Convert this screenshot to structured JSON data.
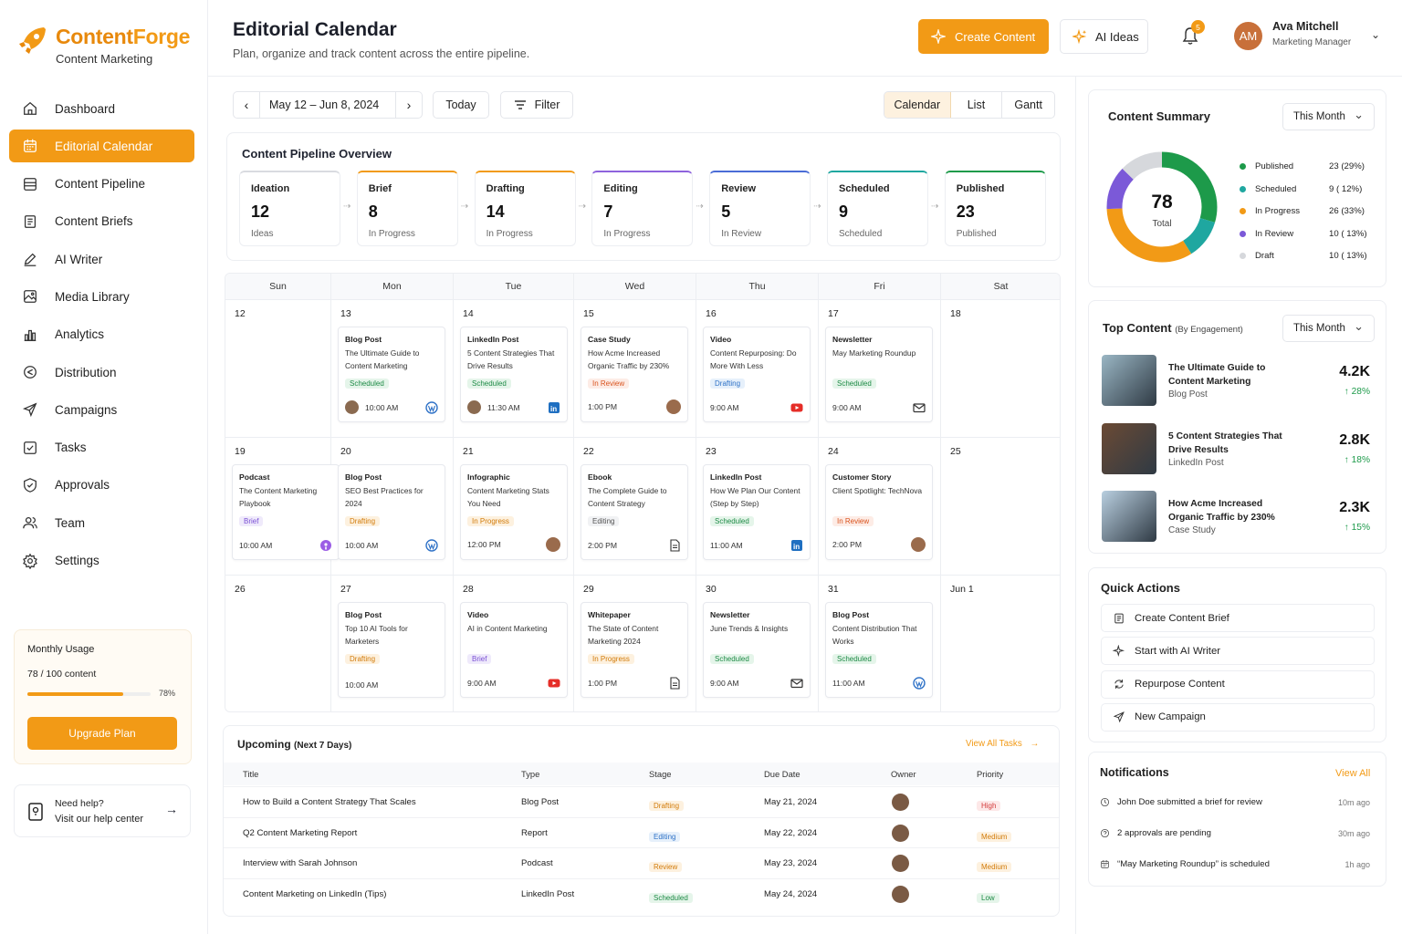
{
  "brand": {
    "name_part1": "Content",
    "name_part2": "Forge",
    "subtitle": "Content Marketing"
  },
  "nav": [
    {
      "label": "Dashboard",
      "icon": "home-icon"
    },
    {
      "label": "Editorial Calendar",
      "icon": "calendar-icon",
      "active": true
    },
    {
      "label": "Content Pipeline",
      "icon": "pipeline-icon"
    },
    {
      "label": "Content Briefs",
      "icon": "brief-icon"
    },
    {
      "label": "AI Writer",
      "icon": "pen-icon"
    },
    {
      "label": "Media Library",
      "icon": "image-icon"
    },
    {
      "label": "Analytics",
      "icon": "bar-chart-icon"
    },
    {
      "label": "Distribution",
      "icon": "share-icon"
    },
    {
      "label": "Campaigns",
      "icon": "send-icon"
    },
    {
      "label": "Tasks",
      "icon": "check-square-icon"
    },
    {
      "label": "Approvals",
      "icon": "approval-icon"
    },
    {
      "label": "Team",
      "icon": "users-icon"
    },
    {
      "label": "Settings",
      "icon": "gear-icon"
    }
  ],
  "usage": {
    "title": "Monthly Usage",
    "count": "78 / 100 content",
    "percent_label": "78%",
    "fraction": 0.78,
    "button": "Upgrade Plan"
  },
  "help": {
    "title": "Need help?",
    "subtitle": "Visit our help center"
  },
  "header": {
    "title": "Editorial Calendar",
    "subtitle": "Plan, organize and track content across the entire pipeline.",
    "create_btn": "Create Content",
    "ai_btn": "AI Ideas",
    "notif_count": "5",
    "user_initials": "AM",
    "user_name": "Ava Mitchell",
    "user_role": "Marketing Manager"
  },
  "toolbar": {
    "range": "May 12 – Jun 8, 2024",
    "today": "Today",
    "filter": "Filter",
    "views": [
      "Calendar",
      "List",
      "Gantt"
    ]
  },
  "pipeline": {
    "title": "Content Pipeline Overview",
    "stages": [
      {
        "name": "Ideation",
        "value": "12",
        "sub": "Ideas",
        "color": "#d9dbe0"
      },
      {
        "name": "Brief",
        "value": "8",
        "sub": "In Progress",
        "color": "#f29a16"
      },
      {
        "name": "Drafting",
        "value": "14",
        "sub": "In Progress",
        "color": "#f29a16"
      },
      {
        "name": "Editing",
        "value": "7",
        "sub": "In Progress",
        "color": "#8e63dd"
      },
      {
        "name": "Review",
        "value": "5",
        "sub": "In Review",
        "color": "#4a6cd6"
      },
      {
        "name": "Scheduled",
        "value": "9",
        "sub": "Scheduled",
        "color": "#1fa7a0"
      },
      {
        "name": "Published",
        "value": "23",
        "sub": "Published",
        "color": "#1d9a4a"
      }
    ]
  },
  "calendar": {
    "days": [
      "Sun",
      "Mon",
      "Tue",
      "Wed",
      "Thu",
      "Fri",
      "Sat"
    ],
    "weeks": [
      [
        "12",
        "13",
        "14",
        "15",
        "16",
        "17",
        "18"
      ],
      [
        "19",
        "20",
        "21",
        "22",
        "23",
        "24",
        "25"
      ],
      [
        "26",
        "27",
        "28",
        "29",
        "30",
        "31",
        "Jun 1"
      ]
    ],
    "events": [
      {
        "w": 0,
        "d": 1,
        "type": "Blog Post",
        "title": "The Ultimate Guide to Content Marketing",
        "status": "Scheduled",
        "cls": "b-sch",
        "time": "10:00 AM",
        "avatar": true,
        "icon": "wordpress-icon"
      },
      {
        "w": 0,
        "d": 2,
        "type": "LinkedIn Post",
        "title": "5 Content Strategies That Drive Results",
        "status": "Scheduled",
        "cls": "b-sch",
        "time": "11:30 AM",
        "avatar": true,
        "icon": "linkedin-icon"
      },
      {
        "w": 0,
        "d": 3,
        "type": "Case Study",
        "title": "How Acme Increased Organic Traffic by 230%",
        "status": "In Review",
        "cls": "b-rev",
        "time": "1:00 PM",
        "avatar": false,
        "icon": "avatar-icon"
      },
      {
        "w": 0,
        "d": 4,
        "type": "Video",
        "title": "Content Repurposing: Do More With Less",
        "status": "Drafting",
        "cls": "b-drf",
        "time": "9:00 AM",
        "avatar": false,
        "icon": "youtube-icon"
      },
      {
        "w": 0,
        "d": 5,
        "type": "Newsletter",
        "title": "May Marketing Roundup",
        "status": "Scheduled",
        "cls": "b-sch",
        "time": "9:00 AM",
        "avatar": false,
        "icon": "mail-icon"
      },
      {
        "w": 1,
        "d": 0,
        "type": "Podcast",
        "title": "The Content Marketing Playbook",
        "status": "Brief",
        "cls": "b-brf",
        "time": "10:00 AM",
        "avatar": false,
        "icon": "podcast-icon"
      },
      {
        "w": 1,
        "d": 1,
        "type": "Blog Post",
        "title": "SEO Best Practices for 2024",
        "status": "Drafting",
        "cls": "b-dft",
        "time": "10:00 AM",
        "avatar": false,
        "icon": "wordpress-icon"
      },
      {
        "w": 1,
        "d": 2,
        "type": "Infographic",
        "title": "Content Marketing Stats You Need",
        "status": "In Progress",
        "cls": "b-inp",
        "time": "12:00 PM",
        "avatar": false,
        "icon": "avatar-icon"
      },
      {
        "w": 1,
        "d": 3,
        "type": "Ebook",
        "title": "The Complete Guide to Content Strategy",
        "status": "Editing",
        "cls": "b-edt",
        "time": "2:00 PM",
        "avatar": false,
        "icon": "document-icon"
      },
      {
        "w": 1,
        "d": 4,
        "type": "LinkedIn Post",
        "title": "How We Plan Our Content (Step by Step)",
        "status": "Scheduled",
        "cls": "b-sch",
        "time": "11:00 AM",
        "avatar": false,
        "icon": "linkedin-icon"
      },
      {
        "w": 1,
        "d": 5,
        "type": "Customer Story",
        "title": "Client Spotlight: TechNova",
        "status": "In Review",
        "cls": "b-rev",
        "time": "2:00 PM",
        "avatar": false,
        "icon": "avatar-icon"
      },
      {
        "w": 2,
        "d": 1,
        "type": "Blog Post",
        "title": "Top 10 AI Tools for Marketers",
        "status": "Drafting",
        "cls": "b-dft",
        "time": "10:00 AM",
        "avatar": false,
        "icon": ""
      },
      {
        "w": 2,
        "d": 2,
        "type": "Video",
        "title": "AI in Content Marketing",
        "status": "Brief",
        "cls": "b-brf",
        "time": "9:00 AM",
        "avatar": false,
        "icon": "youtube-icon"
      },
      {
        "w": 2,
        "d": 3,
        "type": "Whitepaper",
        "title": "The State of Content Marketing 2024",
        "status": "In Progress",
        "cls": "b-inp",
        "time": "1:00 PM",
        "avatar": false,
        "icon": "document-icon"
      },
      {
        "w": 2,
        "d": 4,
        "type": "Newsletter",
        "title": "June Trends & Insights",
        "status": "Scheduled",
        "cls": "b-sch",
        "time": "9:00 AM",
        "avatar": false,
        "icon": "mail-icon"
      },
      {
        "w": 2,
        "d": 5,
        "type": "Blog Post",
        "title": "Content Distribution That Works",
        "status": "Scheduled",
        "cls": "b-sch",
        "time": "11:00 AM",
        "avatar": false,
        "icon": "wordpress-icon"
      }
    ]
  },
  "upcoming": {
    "title": "Upcoming",
    "title_sub": "(Next 7 Days)",
    "view_all": "View All Tasks",
    "columns": [
      "Title",
      "Type",
      "Stage",
      "Due Date",
      "Owner",
      "Priority"
    ],
    "rows": [
      {
        "title": "How to Build a Content Strategy That Scales",
        "type": "Blog Post",
        "stage": "Drafting",
        "stage_cls": "b-dft",
        "due": "May 21, 2024",
        "priority": "High",
        "pr_cls": "b-hi"
      },
      {
        "title": "Q2 Content Marketing Report",
        "type": "Report",
        "stage": "Editing",
        "stage_cls": "b-drf",
        "due": "May 22, 2024",
        "priority": "Medium",
        "pr_cls": "b-med"
      },
      {
        "title": "Interview with Sarah Johnson",
        "type": "Podcast",
        "stage": "Review",
        "stage_cls": "b-inp",
        "due": "May 23, 2024",
        "priority": "Medium",
        "pr_cls": "b-med"
      },
      {
        "title": "Content Marketing on LinkedIn (Tips)",
        "type": "LinkedIn Post",
        "stage": "Scheduled",
        "stage_cls": "b-sch",
        "due": "May 24, 2024",
        "priority": "Low",
        "pr_cls": "b-low"
      }
    ]
  },
  "summary": {
    "title": "Content Summary",
    "period": "This Month",
    "total": "78",
    "total_label": "Total",
    "items": [
      {
        "label": "Published",
        "value": "23 (29%)",
        "count": 23,
        "color": "#1d9a4a"
      },
      {
        "label": "Scheduled",
        "value": "9 ( 12%)",
        "count": 9,
        "color": "#1fa7a0"
      },
      {
        "label": "In Progress",
        "value": "26 (33%)",
        "count": 26,
        "color": "#f29a16"
      },
      {
        "label": "In Review",
        "value": "10 ( 13%)",
        "count": 10,
        "color": "#7b59d8"
      },
      {
        "label": "Draft",
        "value": "10 ( 13%)",
        "count": 10,
        "color": "#d6d8dc"
      }
    ]
  },
  "top_content": {
    "title": "Top Content",
    "title_sub": "(By Engagement)",
    "period": "This Month",
    "items": [
      {
        "title": "The Ultimate Guide to Content Marketing",
        "type": "Blog Post",
        "value": "4.2K",
        "growth": "28%",
        "color": "#9ab6c4"
      },
      {
        "title": "5 Content Strategies That Drive Results",
        "type": "LinkedIn Post",
        "value": "2.8K",
        "growth": "18%",
        "color": "#6b4a34"
      },
      {
        "title": "How Acme Increased Organic Traffic by 230%",
        "type": "Case Study",
        "value": "2.3K",
        "growth": "15%",
        "color": "#b9cfe0"
      }
    ]
  },
  "quick_actions": {
    "title": "Quick Actions",
    "items": [
      {
        "label": "Create Content Brief",
        "icon": "brief-icon"
      },
      {
        "label": "Start with AI Writer",
        "icon": "sparkle-icon"
      },
      {
        "label": "Repurpose Content",
        "icon": "repurpose-icon"
      },
      {
        "label": "New Campaign",
        "icon": "send-icon"
      }
    ]
  },
  "notifications": {
    "title": "Notifications",
    "view_all": "View All",
    "items": [
      {
        "text": "John Doe submitted a brief for review",
        "ago": "10m ago",
        "icon": "clock-icon"
      },
      {
        "text": "2 approvals are pending",
        "ago": "30m ago",
        "icon": "pending-icon"
      },
      {
        "text": "“May Marketing Roundup” is scheduled",
        "ago": "1h ago",
        "icon": "calendar-icon"
      }
    ]
  }
}
